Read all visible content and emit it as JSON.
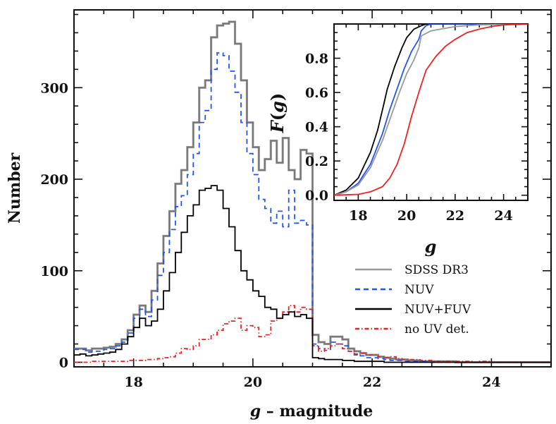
{
  "chart_data": [
    {
      "id": "main",
      "type": "histogram",
      "xlabel_var": "g",
      "xlabel_rest": " – magnitude",
      "ylabel": "Number",
      "xlim": [
        17,
        25
      ],
      "ylim": [
        -5,
        385
      ],
      "xticks": [
        18,
        20,
        22,
        24
      ],
      "xtick_labels": [
        "18",
        "20",
        "22",
        "24"
      ],
      "yticks": [
        0,
        100,
        200,
        300
      ],
      "ytick_labels": [
        "0",
        "100",
        "200",
        "300"
      ],
      "bin_start": 17.0,
      "bin_width": 0.1,
      "legend_position": "bottom-right",
      "series": [
        {
          "name": "SDSS DR3",
          "color": "#999999",
          "dark_color": "#555555",
          "dash": "",
          "values": [
            15,
            15,
            13,
            15,
            15,
            16,
            17,
            20,
            25,
            35,
            52,
            62,
            55,
            78,
            108,
            138,
            165,
            195,
            210,
            235,
            262,
            300,
            308,
            355,
            368,
            370,
            372,
            348,
            308,
            262,
            235,
            210,
            222,
            242,
            218,
            245,
            210,
            200,
            232,
            228,
            30,
            22,
            20,
            28,
            28,
            25,
            15,
            12,
            10,
            8,
            8,
            6,
            5,
            4,
            3,
            3,
            2,
            2,
            1,
            1,
            1,
            1,
            1,
            1,
            0,
            0,
            0,
            0,
            0,
            0,
            0,
            0,
            0,
            0,
            0,
            0,
            0,
            0,
            0,
            0
          ]
        },
        {
          "name": "NUV",
          "color": "#2255ee",
          "dark_color": "#2255ee",
          "dash": "7,5",
          "values": [
            14,
            14,
            11,
            12,
            12,
            14,
            15,
            18,
            22,
            32,
            48,
            58,
            50,
            68,
            95,
            120,
            145,
            170,
            182,
            205,
            228,
            262,
            275,
            320,
            338,
            335,
            318,
            295,
            262,
            228,
            205,
            178,
            168,
            152,
            165,
            148,
            188,
            152,
            155,
            150,
            20,
            15,
            13,
            22,
            20,
            18,
            12,
            9,
            7,
            5,
            5,
            4,
            3,
            2,
            2,
            1,
            1,
            1,
            1,
            0,
            0,
            0,
            0,
            0,
            0,
            0,
            0,
            0,
            0,
            0,
            0,
            0,
            0,
            0,
            0,
            0,
            0,
            0,
            0,
            0
          ]
        },
        {
          "name": "NUV+FUV",
          "color": "#000000",
          "dark_color": "#000000",
          "dash": "",
          "values": [
            8,
            9,
            7,
            8,
            9,
            10,
            11,
            14,
            20,
            28,
            38,
            48,
            40,
            45,
            58,
            78,
            98,
            120,
            142,
            160,
            172,
            188,
            190,
            193,
            188,
            168,
            148,
            122,
            100,
            90,
            78,
            72,
            60,
            58,
            48,
            52,
            55,
            50,
            52,
            48,
            5,
            4,
            3,
            3,
            3,
            2,
            2,
            1,
            1,
            1,
            1,
            1,
            0,
            0,
            0,
            0,
            0,
            0,
            0,
            0,
            0,
            0,
            0,
            0,
            0,
            0,
            0,
            0,
            0,
            0,
            0,
            0,
            0,
            0,
            0,
            0,
            0,
            0,
            0,
            0
          ]
        },
        {
          "name": "no UV det.",
          "color": "#ee2222",
          "dark_color": "#ee2222",
          "dash": "6,3,1.5,3",
          "values": [
            0,
            0,
            0,
            1,
            1,
            1,
            1,
            1,
            1,
            2,
            2,
            2,
            3,
            3,
            4,
            5,
            6,
            10,
            15,
            14,
            18,
            25,
            25,
            30,
            35,
            42,
            45,
            48,
            35,
            40,
            38,
            28,
            30,
            45,
            48,
            55,
            62,
            55,
            60,
            58,
            18,
            12,
            15,
            18,
            20,
            15,
            12,
            8,
            10,
            8,
            8,
            6,
            5,
            6,
            4,
            3,
            3,
            3,
            2,
            2,
            1,
            1,
            1,
            1,
            1,
            1,
            1,
            0,
            1,
            1,
            0,
            0,
            0,
            0,
            0,
            0,
            0,
            0,
            0,
            0
          ]
        }
      ]
    },
    {
      "id": "inset",
      "type": "line",
      "xlabel": "g",
      "ylabel_var": "F",
      "ylabel_arg": "g",
      "xlim": [
        17,
        25
      ],
      "ylim": [
        -0.03,
        1.0
      ],
      "xticks": [
        18,
        20,
        22,
        24
      ],
      "xtick_labels": [
        "18",
        "20",
        "22",
        "24"
      ],
      "yticks": [
        0.0,
        0.2,
        0.4,
        0.6,
        0.8
      ],
      "ytick_labels": [
        "0.0",
        "0.2",
        "0.4",
        "0.6",
        "0.8"
      ],
      "series": [
        {
          "name": "NUV+FUV",
          "color": "#000000",
          "x": [
            17,
            17.5,
            18,
            18.5,
            18.8,
            19,
            19.2,
            19.5,
            19.8,
            20,
            20.3,
            20.6,
            20.8,
            21,
            25
          ],
          "y": [
            0,
            0.03,
            0.1,
            0.25,
            0.38,
            0.5,
            0.62,
            0.75,
            0.86,
            0.92,
            0.97,
            0.99,
            1,
            1,
            1
          ]
        },
        {
          "name": "NUV",
          "color": "#2255ee",
          "x": [
            17,
            17.5,
            18,
            18.5,
            19,
            19.3,
            19.6,
            19.9,
            20.2,
            20.5,
            20.6,
            20.8,
            21,
            25
          ],
          "y": [
            0,
            0.02,
            0.07,
            0.18,
            0.36,
            0.5,
            0.62,
            0.74,
            0.84,
            0.91,
            0.96,
            0.99,
            1,
            1
          ]
        },
        {
          "name": "SDSS DR3",
          "color": "#999999",
          "x": [
            17,
            17.5,
            18,
            18.5,
            19,
            19.4,
            19.7,
            20,
            20.3,
            20.5,
            20.6,
            21,
            22,
            23,
            25
          ],
          "y": [
            0,
            0.02,
            0.06,
            0.16,
            0.32,
            0.48,
            0.6,
            0.71,
            0.79,
            0.86,
            0.93,
            0.96,
            0.985,
            0.995,
            1
          ]
        },
        {
          "name": "no UV det.",
          "color": "#ee2222",
          "x": [
            17,
            18,
            18.5,
            19,
            19.3,
            19.6,
            19.9,
            20.2,
            20.5,
            20.8,
            21.2,
            21.6,
            22,
            22.5,
            23,
            23.5,
            24,
            25
          ],
          "y": [
            0,
            0.005,
            0.02,
            0.05,
            0.1,
            0.18,
            0.3,
            0.46,
            0.6,
            0.73,
            0.81,
            0.87,
            0.91,
            0.95,
            0.97,
            0.985,
            0.995,
            1
          ]
        }
      ]
    }
  ]
}
